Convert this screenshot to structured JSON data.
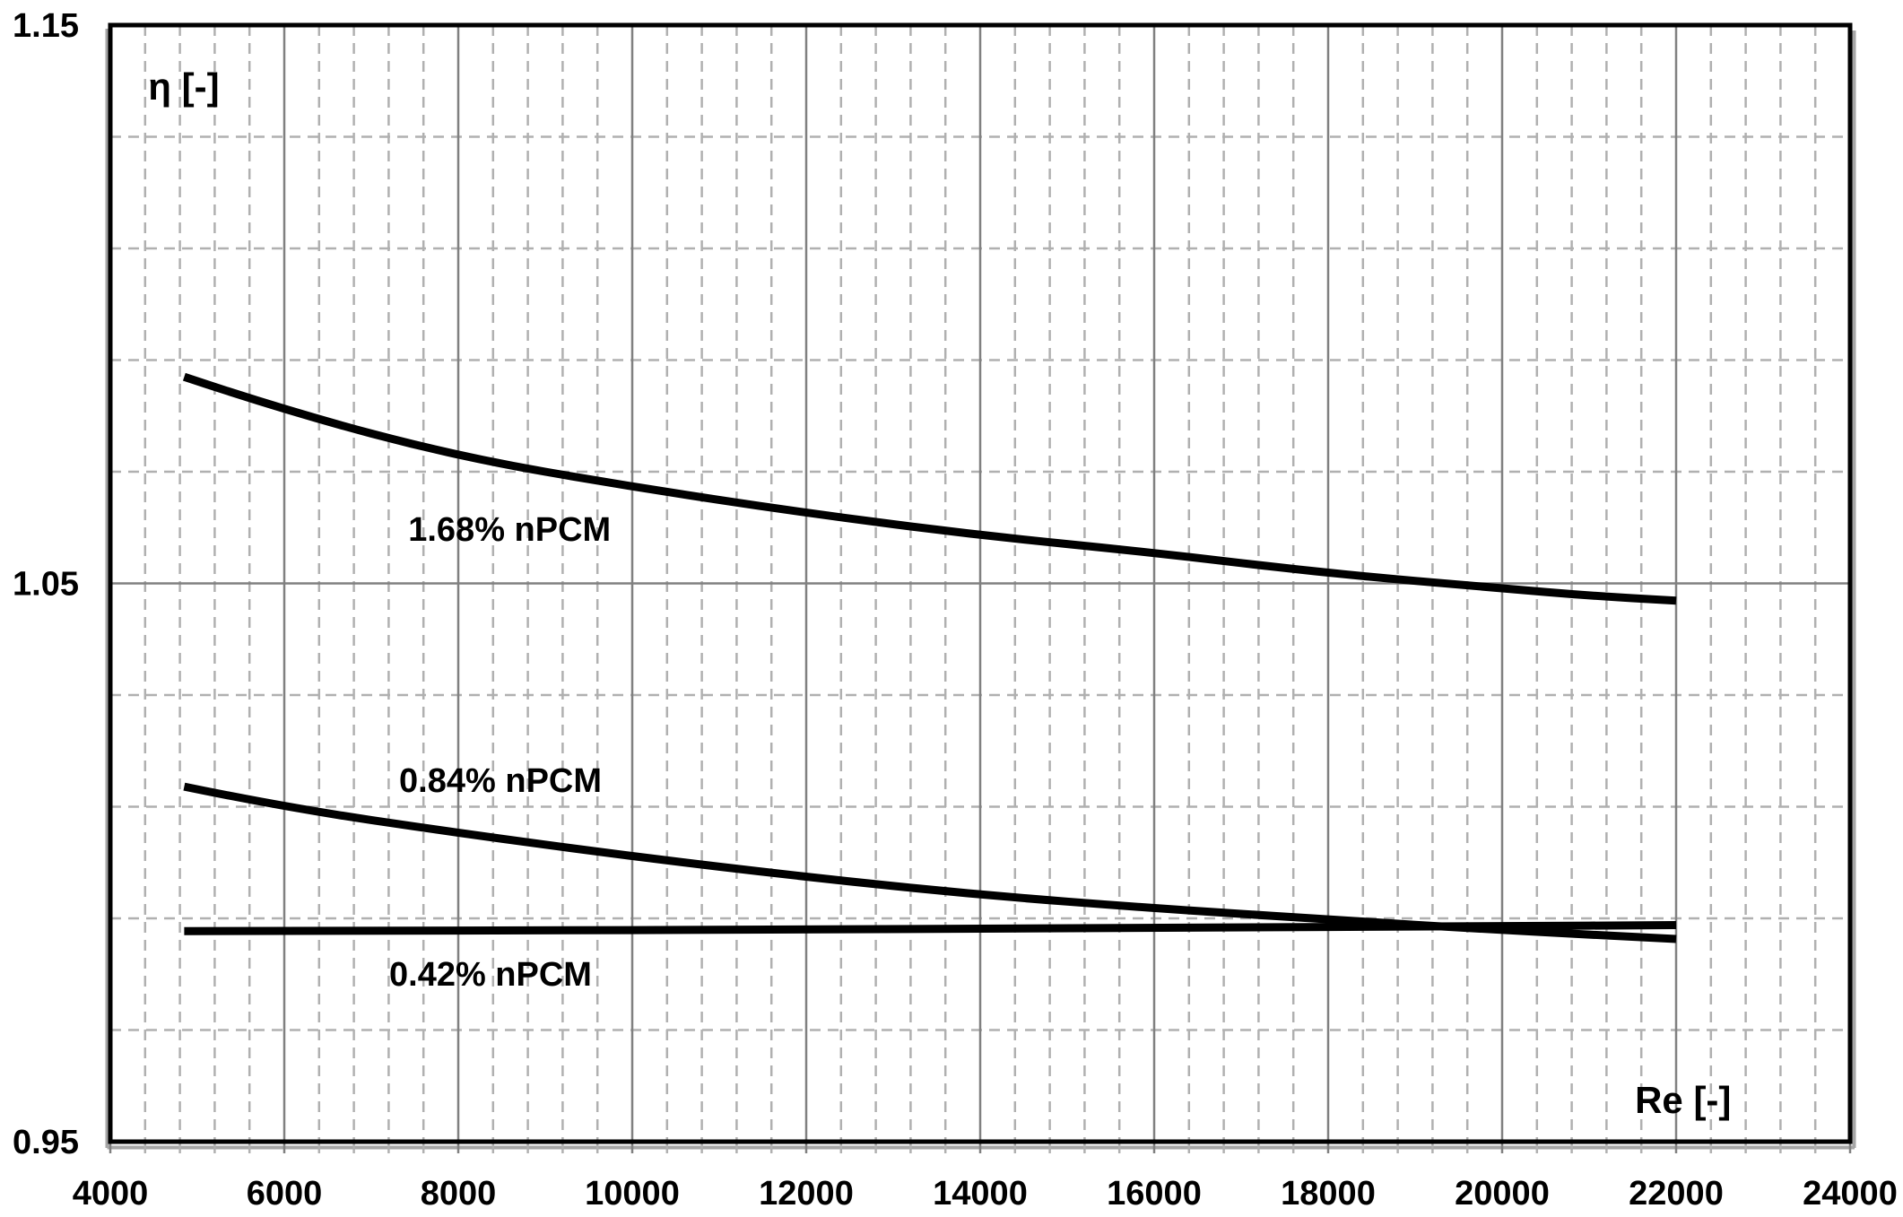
{
  "chart_data": {
    "type": "line",
    "title": "",
    "xlabel": "Re [-]",
    "ylabel": "η [-]",
    "xlim": [
      4000,
      24000
    ],
    "ylim": [
      0.95,
      1.15
    ],
    "x_tick_labels": [
      "4000",
      "6000",
      "8000",
      "10000",
      "12000",
      "14000",
      "16000",
      "18000",
      "20000",
      "22000",
      "24000"
    ],
    "x_major_ticks": [
      4000,
      6000,
      8000,
      10000,
      12000,
      14000,
      16000,
      18000,
      20000,
      22000,
      24000
    ],
    "x_minor_step": 400,
    "y_tick_labels": [
      "0.95",
      "1.05",
      "1.15"
    ],
    "y_major_ticks": [
      0.95,
      1.05,
      1.15
    ],
    "y_minor_step": 0.02,
    "grid": {
      "shown": true,
      "major_style": "solid",
      "minor_style": "dashed"
    },
    "legend_position": "inline-curve-labels",
    "xlabel_anchor": {
      "x": 22080,
      "y": 0.9574
    },
    "ylabel_anchor": {
      "x": 4845,
      "y": 1.1389
    },
    "series": [
      {
        "name": "1.68% nPCM",
        "label_anchor": {
          "x": 8590,
          "y": 1.0596
        },
        "x": [
          4850,
          6000,
          8000,
          10000,
          12000,
          14000,
          16000,
          18000,
          20000,
          21000,
          22000
        ],
        "y": [
          1.087,
          1.081,
          1.0727,
          1.0673,
          1.0626,
          1.0586,
          1.0555,
          1.0518,
          1.0491,
          1.0478,
          1.0469
        ]
      },
      {
        "name": "0.84% nPCM",
        "label_anchor": {
          "x": 8485,
          "y": 1.0146
        },
        "x": [
          4850,
          6000,
          8000,
          10000,
          12000,
          14000,
          16000,
          18000,
          20000,
          22000
        ],
        "y": [
          1.0136,
          1.0099,
          1.0053,
          1.0011,
          0.9974,
          0.9942,
          0.9918,
          0.9898,
          0.9879,
          0.9863
        ]
      },
      {
        "name": "0.42% nPCM",
        "label_anchor": {
          "x": 8371,
          "y": 0.9799
        },
        "x": [
          4850,
          8000,
          12000,
          16000,
          20000,
          22000
        ],
        "y": [
          0.9877,
          0.9878,
          0.988,
          0.9883,
          0.9886,
          0.9888
        ]
      }
    ],
    "colors": {
      "curve": "#000000",
      "major_grid": "#808080",
      "minor_grid": "#b0b0b0",
      "axis_border": "#000000",
      "shadow": "#a6a6a6",
      "text": "#000000",
      "background": "#ffffff"
    }
  }
}
